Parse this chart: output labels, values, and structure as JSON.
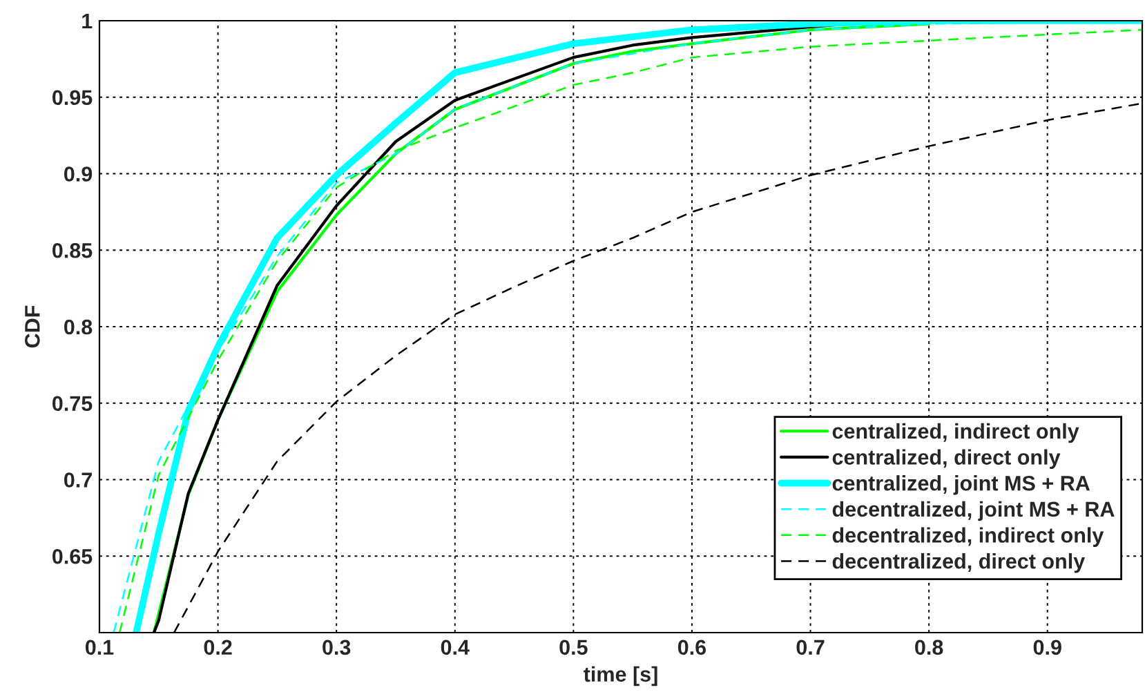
{
  "chart_data": {
    "type": "line",
    "xlabel": "time [s]",
    "ylabel": "CDF",
    "xlim": [
      0.1,
      0.98
    ],
    "ylim": [
      0.6,
      1
    ],
    "xticks": [
      0.1,
      0.2,
      0.3,
      0.4,
      0.5,
      0.6,
      0.7,
      0.8,
      0.9
    ],
    "yticks": [
      0.65,
      0.7,
      0.75,
      0.8,
      0.85,
      0.9,
      0.95,
      1
    ],
    "grid": true,
    "legend": "bottom right",
    "series": [
      {
        "name": "centralized, indirect only",
        "color": "#00ff00",
        "line_style": "solid",
        "x": [
          0.146,
          0.175,
          0.2,
          0.25,
          0.3,
          0.35,
          0.4,
          0.5,
          0.55,
          0.6,
          0.7,
          0.8
        ],
        "values": [
          0.6,
          0.69,
          0.739,
          0.823,
          0.873,
          0.913,
          0.942,
          0.972,
          0.98,
          0.985,
          0.994,
          0.998
        ]
      },
      {
        "name": "centralized, direct only",
        "color": "#000000",
        "line_style": "solid",
        "x": [
          0.146,
          0.15,
          0.175,
          0.2,
          0.25,
          0.3,
          0.35,
          0.4,
          0.5,
          0.55,
          0.6,
          0.7,
          0.75,
          0.8,
          0.98
        ],
        "values": [
          0.6,
          0.608,
          0.691,
          0.739,
          0.827,
          0.879,
          0.921,
          0.948,
          0.976,
          0.984,
          0.989,
          0.996,
          0.999,
          1.0,
          1.0
        ]
      },
      {
        "name": "centralized, joint MS + RA",
        "color": "#00ffff",
        "line_style": "solid",
        "x": [
          0.131,
          0.15,
          0.175,
          0.2,
          0.25,
          0.3,
          0.35,
          0.4,
          0.5,
          0.6,
          0.7,
          0.8,
          0.98
        ],
        "values": [
          0.6,
          0.665,
          0.745,
          0.787,
          0.858,
          0.899,
          0.933,
          0.966,
          0.985,
          0.994,
          0.998,
          1.0,
          1.0
        ]
      },
      {
        "name": "decentralized, joint MS + RA",
        "color": "#00ffff",
        "line_style": "dashed",
        "x": [
          0.112,
          0.15,
          0.2,
          0.25,
          0.3,
          0.35,
          0.4,
          0.5,
          0.6,
          0.7,
          0.8,
          0.9,
          0.98
        ],
        "values": [
          0.6,
          0.712,
          0.784,
          0.846,
          0.894,
          0.913,
          0.942,
          0.972,
          0.985,
          0.994,
          0.998,
          0.999,
          1.0
        ]
      },
      {
        "name": "decentralized, indirect only",
        "color": "#00ff00",
        "line_style": "dashed",
        "x": [
          0.117,
          0.15,
          0.2,
          0.25,
          0.3,
          0.35,
          0.4,
          0.5,
          0.55,
          0.6,
          0.7,
          0.8,
          0.9,
          0.98
        ],
        "values": [
          0.6,
          0.703,
          0.778,
          0.843,
          0.891,
          0.915,
          0.93,
          0.958,
          0.966,
          0.976,
          0.983,
          0.987,
          0.991,
          0.994
        ]
      },
      {
        "name": "decentralized, direct only",
        "color": "#000000",
        "line_style": "dashed",
        "x": [
          0.163,
          0.2,
          0.25,
          0.3,
          0.35,
          0.4,
          0.45,
          0.5,
          0.55,
          0.6,
          0.7,
          0.8,
          0.9,
          0.98
        ],
        "values": [
          0.6,
          0.653,
          0.712,
          0.751,
          0.781,
          0.808,
          0.826,
          0.843,
          0.858,
          0.875,
          0.899,
          0.918,
          0.935,
          0.946
        ]
      }
    ]
  }
}
